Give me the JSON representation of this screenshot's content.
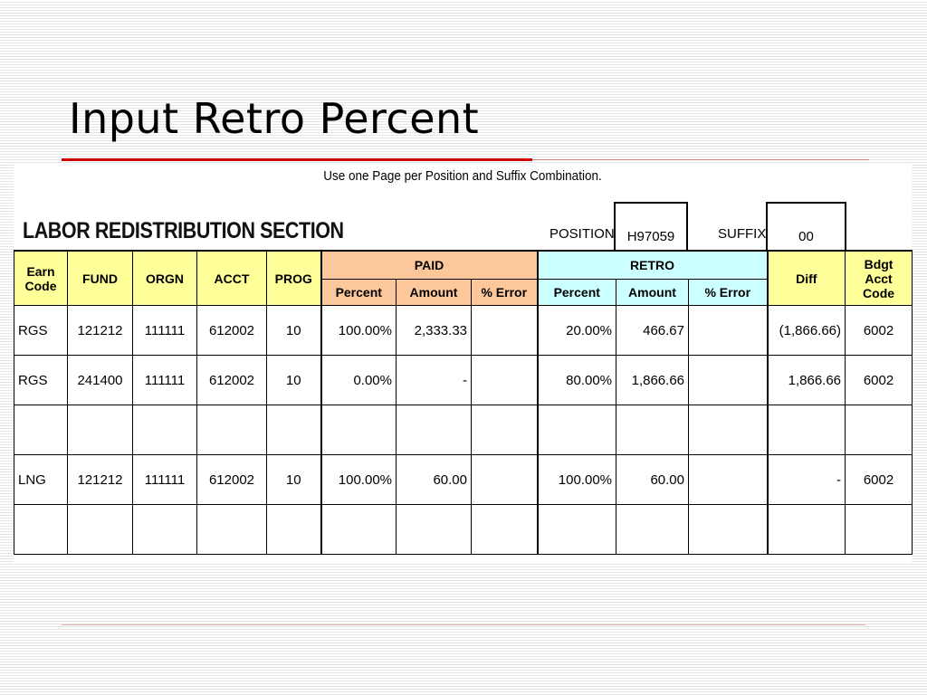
{
  "slide": {
    "title": "Input Retro Percent"
  },
  "sheet": {
    "instruction": "Use one Page per Position and Suffix Combination.",
    "section_title": "LABOR REDISTRIBUTION SECTION",
    "position_label": "POSITION",
    "position_value": "H97059",
    "suffix_label": "SUFFIX",
    "suffix_value": "00"
  },
  "table": {
    "headers": {
      "earn_code": "Earn Code",
      "fund": "FUND",
      "orgn": "ORGN",
      "acct": "ACCT",
      "prog": "PROG",
      "paid": "PAID",
      "retro": "RETRO",
      "diff": "Diff",
      "bdgt_acct_code": "Bdgt Acct Code",
      "percent": "Percent",
      "amount": "Amount",
      "pct_error": "% Error"
    },
    "rows": [
      {
        "earn": "RGS",
        "fund": "121212",
        "orgn": "111111",
        "acct": "612002",
        "prog": "10",
        "paid_pct": "100.00%",
        "paid_amt": "2,333.33",
        "paid_err": "",
        "retro_pct": "20.00%",
        "retro_amt": "466.67",
        "retro_err": "",
        "diff": "(1,866.66)",
        "bdgt": "6002"
      },
      {
        "earn": "RGS",
        "fund": "241400",
        "orgn": "111111",
        "acct": "612002",
        "prog": "10",
        "paid_pct": "0.00%",
        "paid_amt": "-",
        "paid_err": "",
        "retro_pct": "80.00%",
        "retro_amt": "1,866.66",
        "retro_err": "",
        "diff": "1,866.66",
        "bdgt": "6002"
      },
      {
        "earn": "",
        "fund": "",
        "orgn": "",
        "acct": "",
        "prog": "",
        "paid_pct": "",
        "paid_amt": "",
        "paid_err": "",
        "retro_pct": "",
        "retro_amt": "",
        "retro_err": "",
        "diff": "",
        "bdgt": ""
      },
      {
        "earn": "LNG",
        "fund": "121212",
        "orgn": "111111",
        "acct": "612002",
        "prog": "10",
        "paid_pct": "100.00%",
        "paid_amt": "60.00",
        "paid_err": "",
        "retro_pct": "100.00%",
        "retro_amt": "60.00",
        "retro_err": "",
        "diff": "-",
        "bdgt": "6002"
      },
      {
        "earn": "",
        "fund": "",
        "orgn": "",
        "acct": "",
        "prog": "",
        "paid_pct": "",
        "paid_amt": "",
        "paid_err": "",
        "retro_pct": "",
        "retro_amt": "",
        "retro_err": "",
        "diff": "",
        "bdgt": ""
      }
    ]
  },
  "colors": {
    "header_yellow": "#ffff99",
    "paid_orange": "#fcc79a",
    "retro_cyan": "#ccffff",
    "title_rule_red": "#cc0000"
  }
}
